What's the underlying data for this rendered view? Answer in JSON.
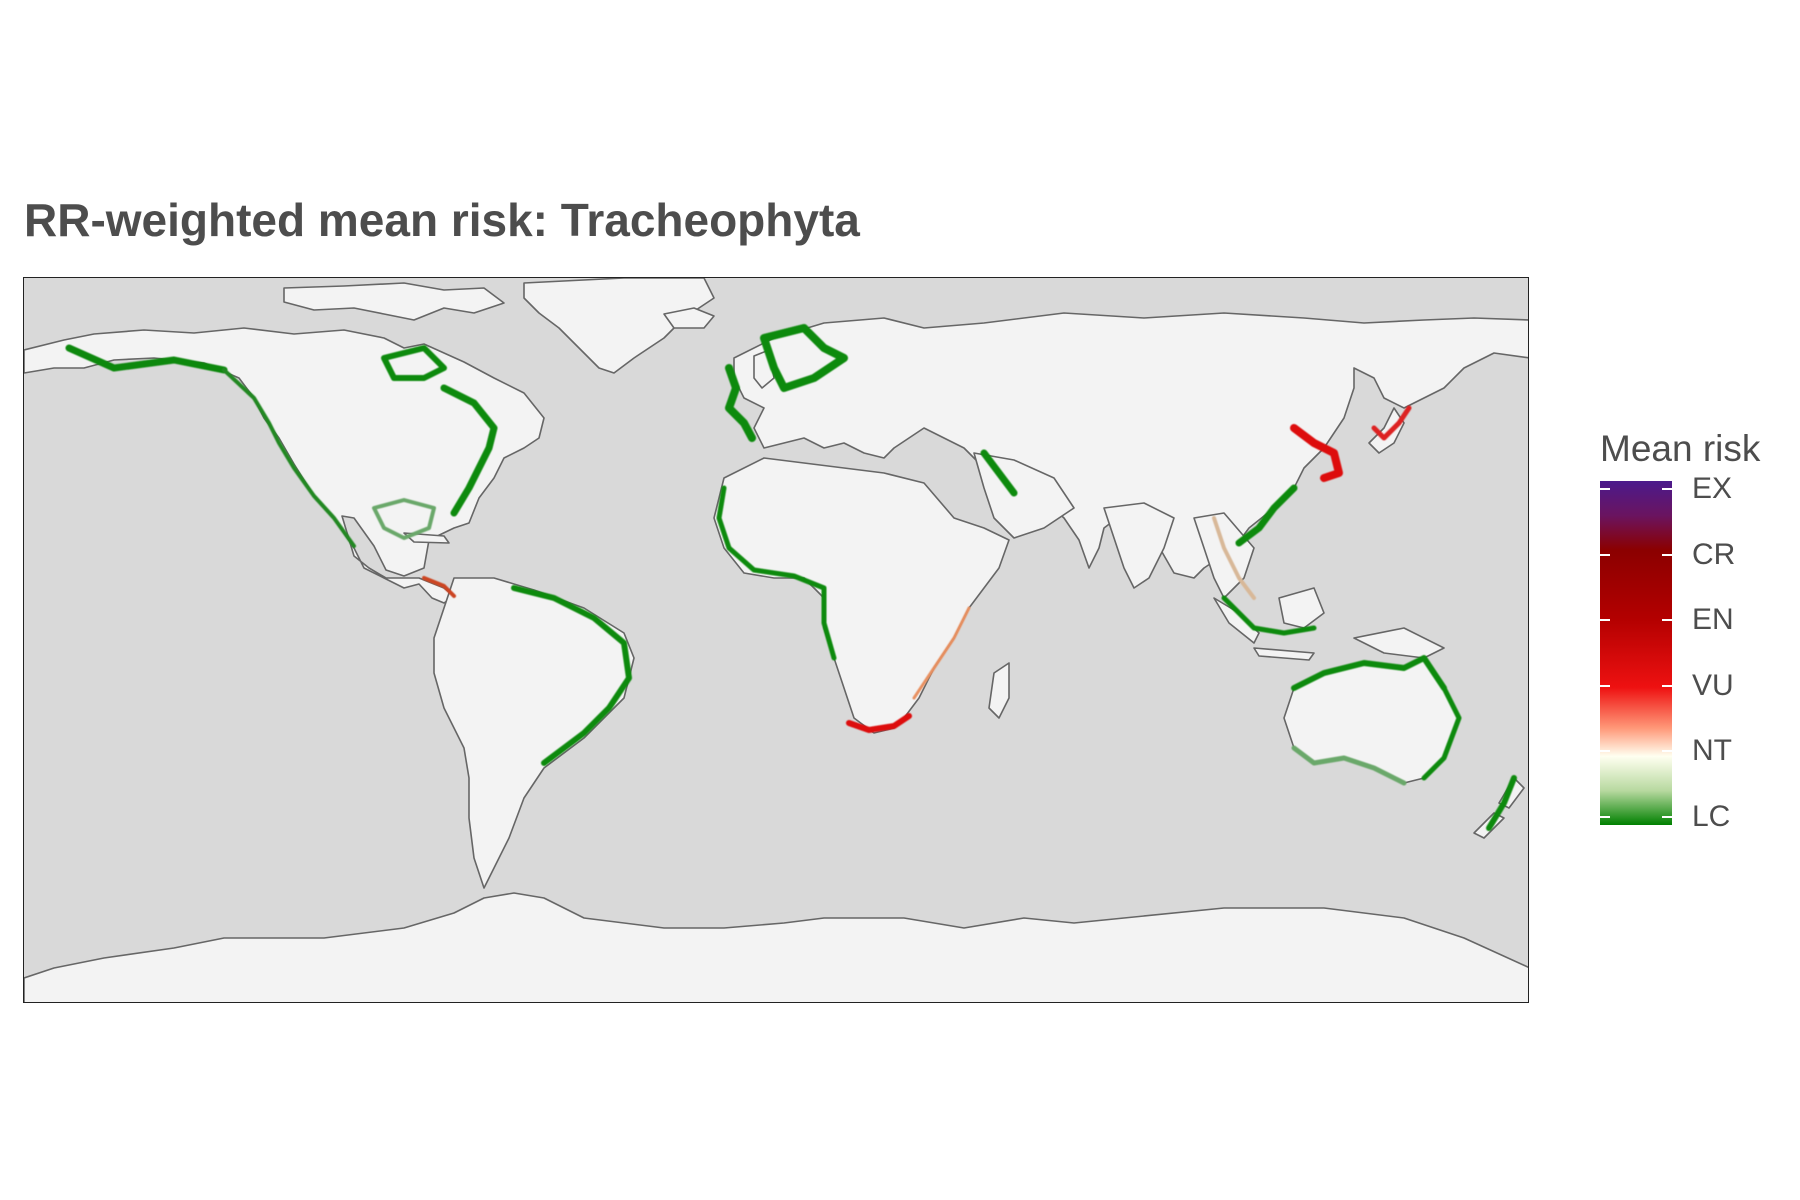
{
  "title": "RR-weighted mean risk: Tracheophyta",
  "legend": {
    "title": "Mean risk",
    "categories": [
      "EX",
      "CR",
      "EN",
      "VU",
      "NT",
      "LC"
    ],
    "colors": [
      "#4b1a8c",
      "#8b0000",
      "#b30000",
      "#ee1111",
      "#fffff0",
      "#008000"
    ]
  },
  "map": {
    "projection": "equirectangular",
    "ocean_color": "#d9d9d9",
    "land_color": "#f3f3f3",
    "coast_color": "#666666",
    "high_risk_regions": [
      {
        "name": "South Africa south coast",
        "category": "VU"
      },
      {
        "name": "Korea / Yellow Sea",
        "category": "VU"
      },
      {
        "name": "Japan",
        "category": "VU"
      }
    ]
  }
}
